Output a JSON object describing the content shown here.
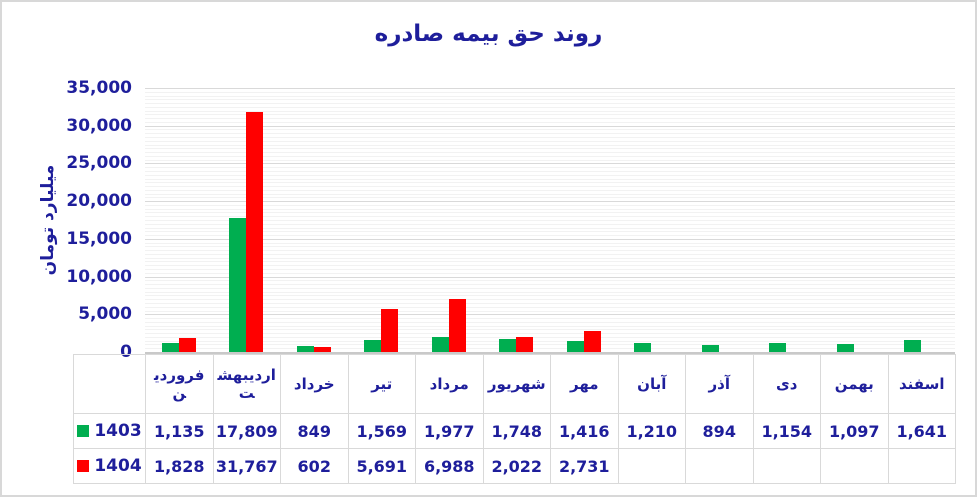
{
  "figure": {
    "background": "#FFFFFF",
    "border_color": "#D8D8D8"
  },
  "colors": {
    "text": "#1E1E9B",
    "series_1403": "#00AE50",
    "series_1404": "#FF0000",
    "gridline_major": "#D9D9D9",
    "gridline_minor": "#F2F2F2",
    "axis_line": "#C9C9C9"
  },
  "chart_data": {
    "type": "bar",
    "title": "روند حق بیمه صادره",
    "ylabel": "میلیارد تومان",
    "xlabel": "",
    "ylim": [
      0,
      35000
    ],
    "ytick_step_major": 5000,
    "ytick_step_minor": 500,
    "grid": true,
    "legend_position": "data-table-left-column",
    "categories": [
      "فروردین",
      "اردیبهشت",
      "خرداد",
      "تیر",
      "مرداد",
      "شهریور",
      "مهر",
      "آبان",
      "آذر",
      "دی",
      "بهمن",
      "اسفند"
    ],
    "series": [
      {
        "name": "1403",
        "color": "#00AE50",
        "values": [
          1135,
          17809,
          849,
          1569,
          1977,
          1748,
          1416,
          1210,
          894,
          1154,
          1097,
          1641
        ]
      },
      {
        "name": "1404",
        "color": "#FF0000",
        "values": [
          1828,
          31767,
          602,
          5691,
          6988,
          2022,
          2731,
          null,
          null,
          null,
          null,
          null
        ]
      }
    ],
    "ytick_labels": [
      "0",
      "5,000",
      "10,000",
      "15,000",
      "20,000",
      "25,000",
      "30,000",
      "35,000"
    ]
  }
}
